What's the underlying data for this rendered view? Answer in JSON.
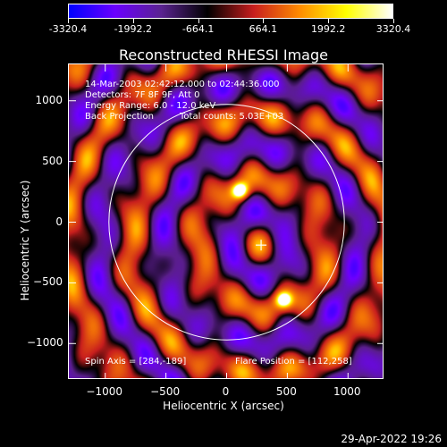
{
  "colorbar": {
    "colors": [
      "#0000ff",
      "#6a00ff",
      "#5a2390",
      "#000000",
      "#c81e1e",
      "#ff8c00",
      "#ffff00",
      "#ffffff"
    ],
    "tick_labels": [
      "-3320.4",
      "-1992.2",
      "-664.1",
      "664.1",
      "1992.2",
      "3320.4"
    ]
  },
  "title": "Reconstructed RHESSI Image",
  "info": {
    "line1": "14-Mar-2003 02:42:12.000 to 02:44:36.000",
    "line2": "Detectors: 7F 8F 9F, Att 0",
    "line3": "Energy Range: 6.0 - 12.0 keV",
    "line4a": "Back Projection",
    "line4b": "Total counts: 5.03E+03",
    "spin_axis": "Spin Axis = [284,-189]",
    "flare_position": "Flare Position = [112,258]"
  },
  "axes": {
    "xlabel": "Heliocentric X (arcsec)",
    "ylabel": "Heliocentric Y (arcsec)"
  },
  "timestamp": "29-Apr-2022 19:26",
  "chart_data": {
    "type": "heatmap",
    "title": "Reconstructed RHESSI Image",
    "xlabel": "Heliocentric X (arcsec)",
    "ylabel": "Heliocentric Y (arcsec)",
    "xlim": [
      -1300,
      1300
    ],
    "ylim": [
      -1300,
      1300
    ],
    "xticks": [
      -1000,
      -500,
      0,
      500,
      1000
    ],
    "xtick_labels": [
      "−1000",
      "−500",
      "0",
      "500",
      "1000"
    ],
    "yticks": [
      1000,
      500,
      0,
      -500,
      -1000
    ],
    "ytick_labels": [
      "1000",
      "500",
      "0",
      "−500",
      "−1000"
    ],
    "color_range": [
      -3320.4,
      3320.4
    ],
    "solar_limb_radius_arcsec": 970,
    "spin_axis": [
      284,
      -189
    ],
    "flare_position": [
      112,
      258
    ],
    "bright_sources": [
      {
        "x": 112,
        "y": 258,
        "value": 3320.4
      },
      {
        "x": 470,
        "y": -640,
        "value": 3000
      }
    ],
    "grid": false
  }
}
